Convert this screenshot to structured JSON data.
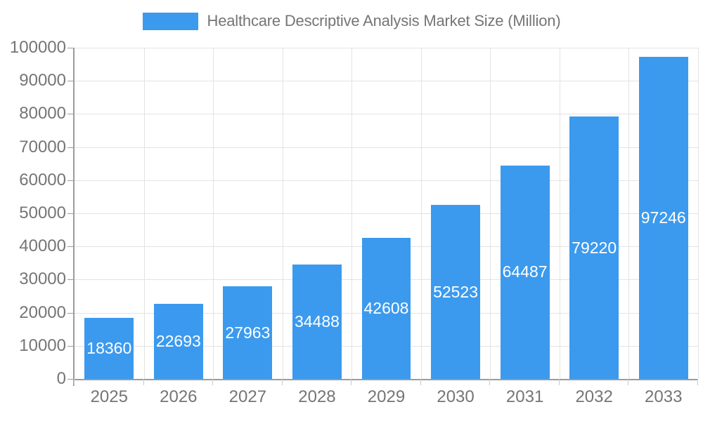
{
  "legend": {
    "label": "Healthcare Descriptive Analysis Market Size (Million)"
  },
  "chart_data": {
    "type": "bar",
    "title": "Healthcare Descriptive Analysis Market Size (Million)",
    "categories": [
      "2025",
      "2026",
      "2027",
      "2028",
      "2029",
      "2030",
      "2031",
      "2032",
      "2033"
    ],
    "values": [
      18360,
      22693,
      27963,
      34488,
      42608,
      52523,
      64487,
      79220,
      97246
    ],
    "xlabel": "",
    "ylabel": "",
    "ylim": [
      0,
      100000
    ],
    "y_ticks": [
      0,
      10000,
      20000,
      30000,
      40000,
      50000,
      60000,
      70000,
      80000,
      90000,
      100000
    ],
    "grid": true,
    "legend_position": "top",
    "value_labels": "inside-center",
    "colors": {
      "bar": "#3B9AEE",
      "value_label": "#FFFFFF",
      "axis_text": "#757575",
      "gridline": "#E3E3E3",
      "axis_line": "#9B9B9B",
      "minor_tick": "#C9C9C9",
      "background": "#FFFFFF"
    }
  }
}
